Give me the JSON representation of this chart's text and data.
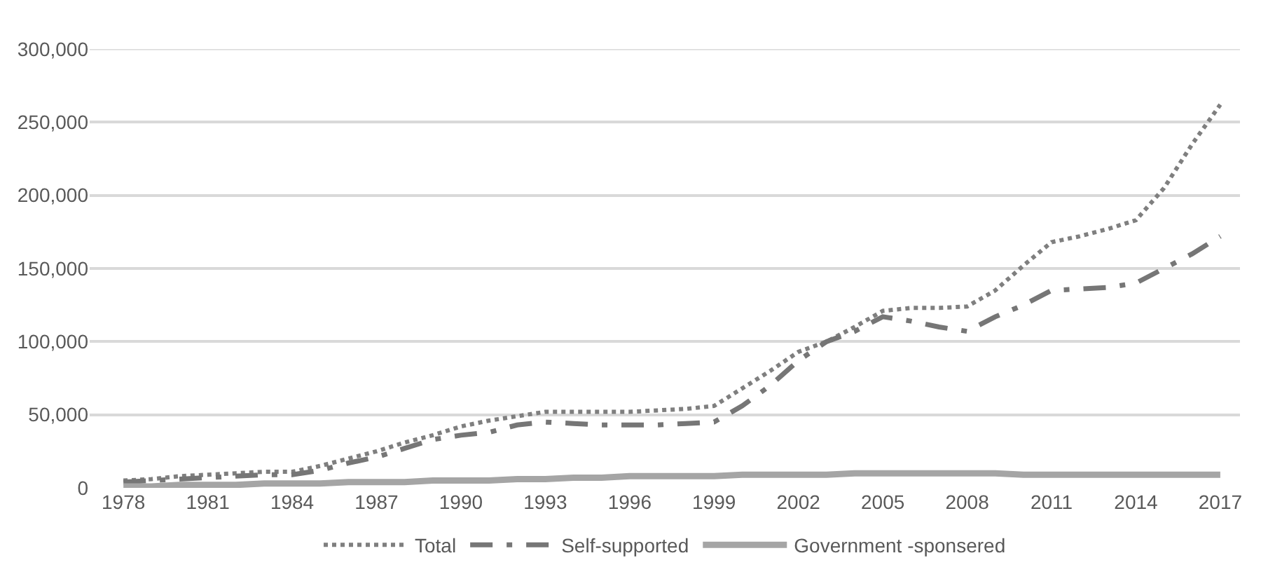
{
  "chart_data": {
    "type": "line",
    "categories": [
      "1978",
      null,
      null,
      "1981",
      null,
      null,
      "1984",
      null,
      null,
      "1987",
      null,
      null,
      "1990",
      null,
      null,
      "1993",
      null,
      null,
      "1996",
      null,
      null,
      "1999",
      null,
      null,
      "2002",
      null,
      null,
      "2005",
      null,
      null,
      "2008",
      null,
      null,
      "2011",
      null,
      null,
      "2014",
      null,
      null,
      "2017"
    ],
    "series": [
      {
        "name": "Total",
        "color": "#7f7f7f",
        "line_style": "dotted",
        "values": [
          5000,
          6000,
          8000,
          9000,
          10000,
          11000,
          11000,
          15000,
          20000,
          25000,
          31000,
          36000,
          42000,
          46000,
          49000,
          52000,
          52000,
          52000,
          52000,
          53000,
          54000,
          56000,
          68000,
          80000,
          93000,
          100000,
          110000,
          121000,
          123000,
          123000,
          124000,
          135000,
          152000,
          168000,
          172000,
          177000,
          183000,
          205000,
          235000,
          262000
        ]
      },
      {
        "name": "Self-supported",
        "color": "#767676",
        "line_style": "dashed",
        "values": [
          4000,
          5000,
          6000,
          7000,
          8000,
          9000,
          9000,
          12000,
          17000,
          21000,
          27000,
          33000,
          36000,
          38000,
          43000,
          45000,
          44000,
          43000,
          43000,
          43000,
          44000,
          45000,
          56000,
          70000,
          87000,
          100000,
          107000,
          117000,
          114000,
          110000,
          107000,
          117000,
          125000,
          135000,
          136000,
          137000,
          140000,
          150000,
          160000,
          172000
        ]
      },
      {
        "name": "Government -sponsered",
        "color": "#a5a5a5",
        "line_style": "solid",
        "values": [
          1000,
          1000,
          2000,
          2000,
          2000,
          3000,
          3000,
          3000,
          4000,
          4000,
          4000,
          5000,
          5000,
          5000,
          6000,
          6000,
          7000,
          7000,
          8000,
          8000,
          8000,
          8000,
          9000,
          9000,
          9000,
          9000,
          10000,
          10000,
          10000,
          10000,
          10000,
          10000,
          9000,
          9000,
          9000,
          9000,
          9000,
          9000,
          9000,
          9000
        ]
      }
    ],
    "ylim": [
      0,
      300000
    ],
    "yticks": [
      {
        "value": 0,
        "label": "0"
      },
      {
        "value": 50000,
        "label": "50,000"
      },
      {
        "value": 100000,
        "label": "100,000"
      },
      {
        "value": 150000,
        "label": "150,000"
      },
      {
        "value": 200000,
        "label": "200,000"
      },
      {
        "value": 250000,
        "label": "250,000"
      },
      {
        "value": 300000,
        "label": "300,000"
      }
    ],
    "grid": "y",
    "legend": "bottom",
    "marker": "none"
  }
}
